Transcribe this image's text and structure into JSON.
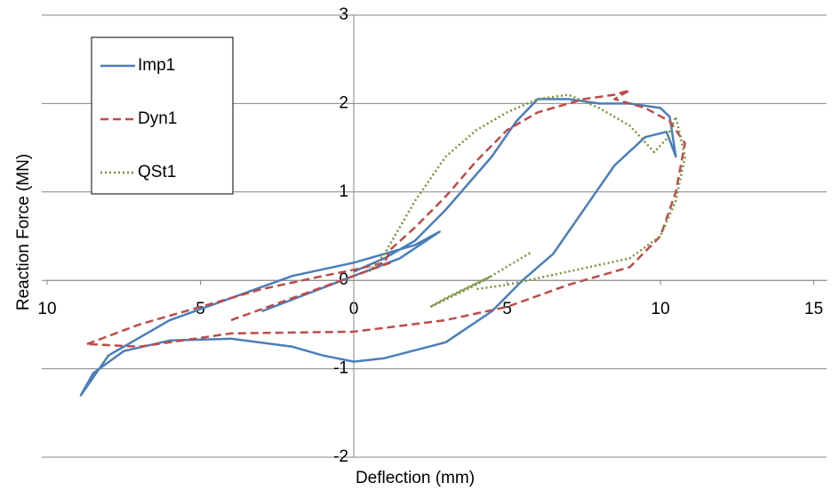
{
  "chart_data": {
    "type": "line",
    "x_label": "Deflection (mm)",
    "y_label": "Reaction Force (MN)",
    "xlim": [
      -10,
      15
    ],
    "ylim": [
      -2,
      3
    ],
    "xticks": [
      {
        "value": -10,
        "label": "10"
      },
      {
        "value": -5,
        "label": "5"
      },
      0,
      5,
      10,
      15
    ],
    "yticks": [
      -2,
      -1,
      0,
      1,
      2,
      3
    ],
    "grid": true,
    "legend": "upper left",
    "series": [
      {
        "name": "Imp1",
        "color": "#4a7ebb",
        "style": "solid",
        "x": [
          -3,
          -1.5,
          0,
          1.5,
          2.8,
          2,
          1,
          0,
          -2,
          -4,
          -6,
          -8,
          -8.9,
          -8.5,
          -7.5,
          -6,
          -4,
          -2,
          -1,
          0,
          1,
          3,
          4.5,
          5.5,
          6.5,
          7.5,
          8.5,
          9.5,
          10.2,
          10.5,
          10.3,
          10,
          9,
          8,
          7,
          6,
          5.3,
          4.5,
          3.5,
          3,
          2,
          1,
          0
        ],
        "values": [
          -0.35,
          -0.15,
          0.05,
          0.25,
          0.55,
          0.4,
          0.3,
          0.2,
          0.05,
          -0.2,
          -0.45,
          -0.85,
          -1.3,
          -1.05,
          -0.8,
          -0.68,
          -0.66,
          -0.75,
          -0.85,
          -0.92,
          -0.88,
          -0.7,
          -0.35,
          0,
          0.3,
          0.8,
          1.3,
          1.62,
          1.68,
          1.4,
          1.85,
          1.95,
          2.0,
          2.0,
          2.05,
          2.05,
          1.8,
          1.4,
          1.0,
          0.8,
          0.45,
          0.25,
          0.1
        ]
      },
      {
        "name": "Dyn1",
        "color": "#be4b48",
        "style": "dashed",
        "x": [
          -4,
          -2,
          0,
          1.2,
          null,
          -8.7,
          -7,
          -5,
          -3,
          -1,
          0,
          1,
          1.2,
          2,
          3,
          4,
          5,
          6,
          7.5,
          8.5,
          9,
          8.5,
          9.5,
          10.3,
          10.8,
          10.5,
          10,
          9,
          7,
          5,
          3,
          0,
          -4,
          -7,
          -8.7
        ],
        "values": [
          -0.45,
          -0.2,
          0.05,
          0.2,
          null,
          -0.72,
          -0.5,
          -0.3,
          -0.1,
          0.05,
          0.12,
          0.2,
          0.35,
          0.6,
          0.95,
          1.35,
          1.7,
          1.9,
          2.05,
          2.1,
          2.15,
          2.05,
          1.95,
          1.8,
          1.55,
          1.0,
          0.5,
          0.15,
          -0.05,
          -0.3,
          -0.45,
          -0.58,
          -0.6,
          -0.75,
          -0.72
        ]
      },
      {
        "name": "QSt1",
        "color": "#77933c",
        "style": "dotted",
        "x": [
          2.5,
          3.5,
          4.5,
          3,
          2.5,
          4,
          5.8,
          null,
          0.5,
          1,
          2,
          3,
          4,
          5,
          6,
          7,
          8,
          9,
          9.8,
          10.2,
          10.5,
          10.8,
          10.5,
          10,
          9,
          7,
          5,
          4
        ],
        "values": [
          -0.3,
          -0.12,
          0.05,
          -0.2,
          -0.3,
          -0.05,
          0.32,
          null,
          0.1,
          0.3,
          0.9,
          1.4,
          1.7,
          1.9,
          2.05,
          2.1,
          1.95,
          1.75,
          1.45,
          1.6,
          1.85,
          1.4,
          0.9,
          0.5,
          0.25,
          0.1,
          -0.05,
          -0.1
        ]
      }
    ]
  }
}
